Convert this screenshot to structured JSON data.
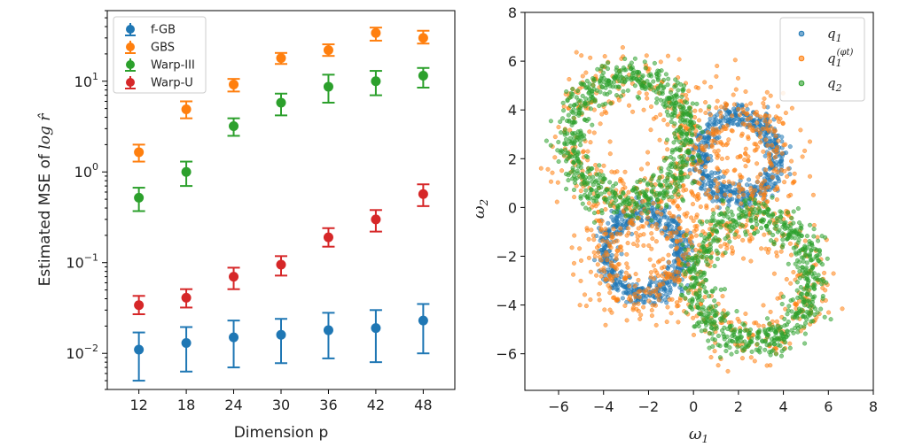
{
  "colors": {
    "blue": "#1f77b4",
    "orange": "#ff7f0e",
    "green": "#2ca02c",
    "red": "#d62728"
  },
  "chart_data": [
    {
      "type": "scatter",
      "subtype": "errorbar",
      "xlabel": "Dimension p",
      "ylabel_prefix": "Estimated MSE of ",
      "ylabel_math": "log r̂",
      "yscale": "log",
      "ylim": [
        0.004,
        60
      ],
      "xlim": [
        8,
        52
      ],
      "x": [
        12,
        18,
        24,
        30,
        36,
        42,
        48
      ],
      "x_ticks": [
        "12",
        "18",
        "24",
        "30",
        "36",
        "42",
        "48"
      ],
      "y_ticks": [
        {
          "value": 0.01,
          "base": "10",
          "exp": "−2"
        },
        {
          "value": 0.1,
          "base": "10",
          "exp": "−1"
        },
        {
          "value": 1,
          "base": "10",
          "exp": "0"
        },
        {
          "value": 10,
          "base": "10",
          "exp": "1"
        }
      ],
      "legend_position": "upper left",
      "series": [
        {
          "name": "f-GB",
          "color": "#1f77b4",
          "values": [
            0.011,
            0.013,
            0.015,
            0.016,
            0.018,
            0.019,
            0.023
          ],
          "lower": [
            0.005,
            0.0063,
            0.007,
            0.0078,
            0.0088,
            0.008,
            0.01
          ],
          "upper": [
            0.017,
            0.0195,
            0.023,
            0.024,
            0.028,
            0.03,
            0.035
          ]
        },
        {
          "name": "GBS",
          "color": "#ff7f0e",
          "values": [
            1.65,
            4.9,
            9.2,
            18,
            22,
            34,
            30
          ],
          "lower": [
            1.3,
            3.9,
            7.7,
            15.5,
            19,
            28,
            26
          ],
          "upper": [
            2.0,
            6.0,
            10.6,
            20.5,
            25.5,
            39,
            36
          ]
        },
        {
          "name": "Warp-III",
          "color": "#2ca02c",
          "values": [
            0.52,
            1.0,
            3.2,
            5.8,
            8.7,
            10,
            11.5
          ],
          "lower": [
            0.37,
            0.7,
            2.5,
            4.2,
            5.8,
            7,
            8.5
          ],
          "upper": [
            0.67,
            1.3,
            3.9,
            7.3,
            11.8,
            13,
            14
          ]
        },
        {
          "name": "Warp-U",
          "color": "#d62728",
          "values": [
            0.034,
            0.041,
            0.07,
            0.095,
            0.19,
            0.3,
            0.57
          ],
          "lower": [
            0.027,
            0.032,
            0.051,
            0.072,
            0.15,
            0.22,
            0.42
          ],
          "upper": [
            0.043,
            0.051,
            0.088,
            0.118,
            0.24,
            0.38,
            0.73
          ]
        }
      ]
    },
    {
      "type": "scatter",
      "xlabel": "ω",
      "xlabel_sub": "1",
      "ylabel": "ω",
      "ylabel_sub": "2",
      "xlim": [
        -7.5,
        8
      ],
      "ylim": [
        -7.5,
        8
      ],
      "x_ticks": [
        "−6",
        "−4",
        "−2",
        "0",
        "2",
        "4",
        "6",
        "8"
      ],
      "x_tick_values": [
        -6,
        -4,
        -2,
        0,
        2,
        4,
        6,
        8
      ],
      "y_ticks": [
        "−6",
        "−4",
        "−2",
        "0",
        "2",
        "4",
        "6",
        "8"
      ],
      "y_tick_values": [
        -6,
        -4,
        -2,
        0,
        2,
        4,
        6,
        8
      ],
      "legend_position": "upper right",
      "series": [
        {
          "name": "q1",
          "label_main": "q",
          "label_sub": "1",
          "label_sup": "",
          "color": "#1f77b4",
          "rings": [
            {
              "center": [
                2.0,
                2.1
              ],
              "radius": 1.7
            },
            {
              "center": [
                -2.2,
                -1.9
              ],
              "radius": 1.7
            }
          ],
          "ring_width": 0.55,
          "n_per_ring": 520
        },
        {
          "name": "q1 phi_t",
          "label_main": "q",
          "label_sub": "1",
          "label_sup": "(φt)",
          "color": "#ff7f0e",
          "rings": [
            {
              "center": [
                -2.9,
                2.8
              ],
              "radius": 2.6
            },
            {
              "center": [
                2.7,
                -2.9
              ],
              "radius": 2.6
            },
            {
              "center": [
                2.0,
                2.1
              ],
              "radius": 1.9
            },
            {
              "center": [
                -2.2,
                -1.9
              ],
              "radius": 1.9
            }
          ],
          "ring_width": 1.5,
          "n_per_ring": 300
        },
        {
          "name": "q2",
          "label_main": "q",
          "label_sub": "2",
          "label_sup": "",
          "color": "#2ca02c",
          "rings": [
            {
              "center": [
                -2.9,
                2.8
              ],
              "radius": 2.6
            },
            {
              "center": [
                2.7,
                -2.9
              ],
              "radius": 2.6
            }
          ],
          "ring_width": 0.8,
          "n_per_ring": 720
        }
      ]
    }
  ]
}
